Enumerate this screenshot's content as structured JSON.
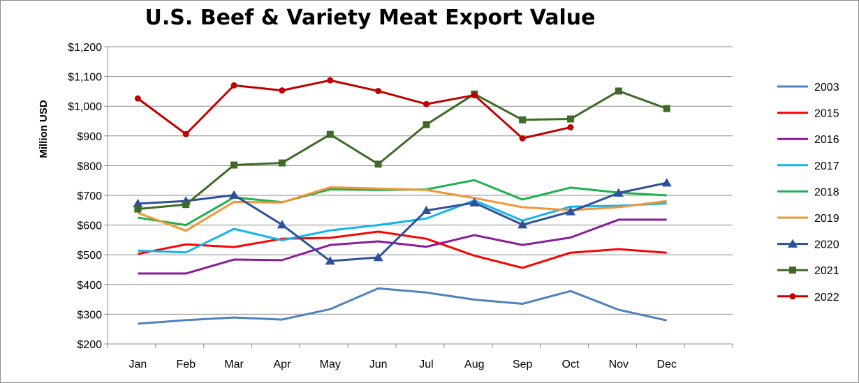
{
  "chart_data": {
    "type": "line",
    "title": "U.S. Beef & Variety Meat Export Value",
    "ylabel": "Million USD",
    "xlabel": "",
    "categories": [
      "Jan",
      "Feb",
      "Mar",
      "Apr",
      "May",
      "Jun",
      "Jul",
      "Aug",
      "Sep",
      "Oct",
      "Nov",
      "Dec"
    ],
    "ylim": [
      200,
      1200
    ],
    "yticks": [
      200,
      300,
      400,
      500,
      600,
      700,
      800,
      900,
      1000,
      1100,
      1200
    ],
    "ytick_labels": [
      "$200",
      "$300",
      "$400",
      "$500",
      "$600",
      "$700",
      "$800",
      "$900",
      "$1,000",
      "$1,100",
      "$1,200"
    ],
    "grid": true,
    "legend_position": "right",
    "series": [
      {
        "name": "2003",
        "color": "#4f81bd",
        "marker": "none",
        "values": [
          268,
          280,
          289,
          282,
          317,
          387,
          373,
          349,
          335,
          378,
          315,
          279
        ]
      },
      {
        "name": "2015",
        "color": "#ff0000",
        "marker": "none",
        "values": [
          503,
          535,
          526,
          554,
          557,
          578,
          554,
          497,
          456,
          507,
          519,
          507
        ]
      },
      {
        "name": "2016",
        "color": "#8b1a9c",
        "marker": "none",
        "values": [
          437,
          437,
          484,
          482,
          533,
          545,
          527,
          566,
          533,
          558,
          618,
          618
        ]
      },
      {
        "name": "2017",
        "color": "#12b5ea",
        "marker": "none",
        "values": [
          514,
          508,
          587,
          549,
          582,
          600,
          622,
          683,
          615,
          662,
          665,
          673
        ]
      },
      {
        "name": "2018",
        "color": "#1fb050",
        "marker": "none",
        "values": [
          625,
          600,
          693,
          677,
          720,
          718,
          720,
          751,
          686,
          726,
          709,
          700
        ]
      },
      {
        "name": "2019",
        "color": "#f39535",
        "marker": "none",
        "values": [
          641,
          581,
          678,
          676,
          727,
          723,
          718,
          691,
          660,
          650,
          660,
          681
        ]
      },
      {
        "name": "2020",
        "color": "#2e4f9a",
        "marker": "triangle",
        "values": [
          672,
          681,
          701,
          601,
          479,
          491,
          649,
          675,
          601,
          645,
          708,
          742
        ]
      },
      {
        "name": "2021",
        "color": "#3d6a25",
        "marker": "square",
        "values": [
          654,
          669,
          802,
          809,
          905,
          805,
          938,
          1041,
          954,
          957,
          1051,
          992
        ]
      },
      {
        "name": "2022",
        "color": "#c00000",
        "marker": "circle",
        "values": [
          1026,
          906,
          1070,
          1053,
          1087,
          1051,
          1007,
          1037,
          892,
          929,
          null,
          null
        ]
      }
    ]
  }
}
